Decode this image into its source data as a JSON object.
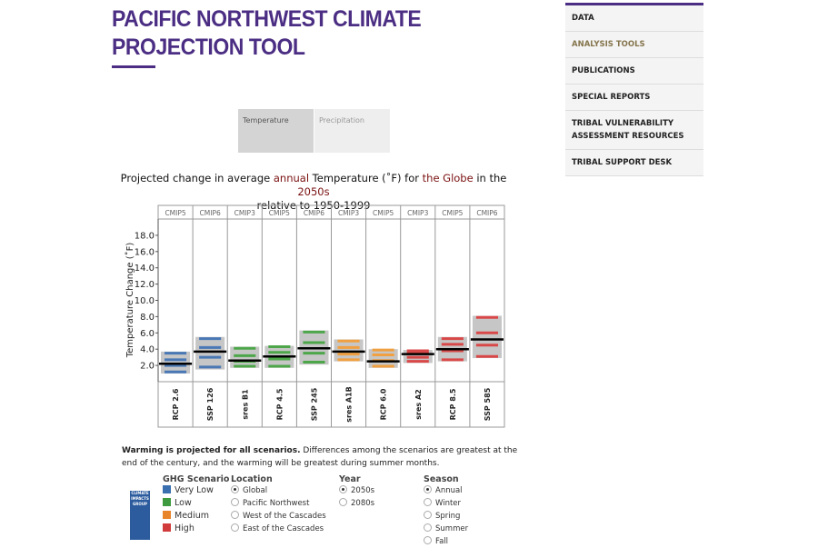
{
  "header": {
    "title": "PACIFIC NORTHWEST CLIMATE PROJECTION TOOL"
  },
  "nav": [
    "DATA",
    "ANALYSIS TOOLS",
    "PUBLICATIONS",
    "SPECIAL REPORTS",
    "TRIBAL VULNERABILITY ASSESSMENT RESOURCES",
    "TRIBAL SUPPORT DESK"
  ],
  "nav_active": 1,
  "tabs": [
    "Temperature",
    "Precipitation"
  ],
  "tab_active": 0,
  "chart": {
    "type": "range",
    "title_parts": [
      "Projected change in average ",
      "annual",
      " Temperature (˚F) for ",
      "the Globe",
      " in the ",
      "2050s"
    ],
    "subtitle": "relative to 1950-1999",
    "ylabel": "Temperature Change (˚F)",
    "ylim": [
      0,
      20
    ],
    "yticks": [
      {
        "value": 2,
        "label": "2.0"
      },
      {
        "value": 4,
        "label": "4.0"
      },
      {
        "value": 6,
        "label": "6.0"
      },
      {
        "value": 8,
        "label": "8.0"
      },
      {
        "value": 10,
        "label": "10.0"
      },
      {
        "value": 12,
        "label": "12.0"
      },
      {
        "value": 14,
        "label": "14.0"
      },
      {
        "value": 16,
        "label": "16.0"
      },
      {
        "value": 18,
        "label": "18.0"
      }
    ],
    "groups": [
      "CMIP5",
      "CMIP6",
      "CMIP3",
      "CMIP5",
      "CMIP6",
      "CMIP3",
      "CMIP5",
      "CMIP3",
      "CMIP5",
      "CMIP6"
    ],
    "categories": [
      "RCP 2.6",
      "SSP 126",
      "sres B1",
      "RCP 4.5",
      "SSP 245",
      "sres A1B",
      "RCP 6.0",
      "sres A2",
      "RCP 8.5",
      "SSP 585"
    ],
    "colors": [
      "#4a78b5",
      "#4a78b5",
      "#4da64a",
      "#4da64a",
      "#4da64a",
      "#f0a040",
      "#f0a040",
      "#d94848",
      "#d94848",
      "#d94848"
    ],
    "low": [
      1.0,
      1.5,
      1.7,
      1.7,
      2.1,
      2.5,
      1.7,
      2.3,
      2.5,
      2.9
    ],
    "high": [
      3.7,
      5.5,
      4.3,
      4.4,
      6.3,
      5.2,
      4.0,
      3.9,
      5.5,
      8.1
    ],
    "median": [
      2.2,
      3.7,
      2.6,
      3.1,
      4.1,
      3.7,
      2.5,
      3.4,
      4.0,
      5.2
    ],
    "models": [
      [
        1.2,
        2.0,
        2.7,
        3.5
      ],
      [
        1.8,
        3.0,
        4.2,
        5.3
      ],
      [
        1.9,
        2.5,
        3.2,
        4.1
      ],
      [
        1.9,
        2.8,
        3.6,
        4.3
      ],
      [
        2.4,
        3.5,
        4.8,
        6.1
      ],
      [
        2.7,
        3.4,
        4.2,
        5.0
      ],
      [
        1.9,
        2.6,
        3.3,
        3.9
      ],
      [
        2.5,
        3.0,
        3.5,
        3.8
      ],
      [
        2.7,
        3.8,
        4.6,
        5.3
      ],
      [
        3.1,
        4.5,
        6.0,
        7.9
      ]
    ]
  },
  "summary": {
    "lead": "Warming is projected for all scenarios.",
    "text": " Differences among the scenarios are greatest at the end of the century, and the warming will be greatest during summer months."
  },
  "logo": "CLIMATE IMPACTS GROUP",
  "controls": {
    "ghg": {
      "title": "GHG Scenario",
      "items": [
        {
          "label": "Very Low",
          "color": "#3a6fb0"
        },
        {
          "label": "Low",
          "color": "#3e9a3e"
        },
        {
          "label": "Medium",
          "color": "#e8852a"
        },
        {
          "label": "High",
          "color": "#d23b3b"
        }
      ]
    },
    "location": {
      "title": "Location",
      "options": [
        "Global",
        "Pacific Northwest",
        "West of the Cascades",
        "East of the Cascades"
      ],
      "selected": 0
    },
    "year": {
      "title": "Year",
      "options": [
        "2050s",
        "2080s"
      ],
      "selected": 0
    },
    "season": {
      "title": "Season",
      "options": [
        "Annual",
        "Winter",
        "Spring",
        "Summer",
        "Fall"
      ],
      "selected": 0
    }
  }
}
